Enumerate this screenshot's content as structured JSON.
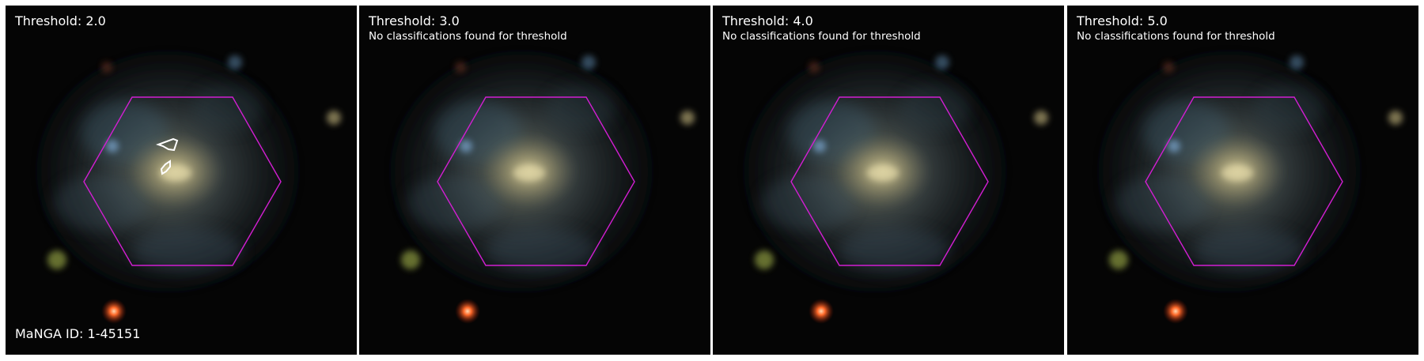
{
  "panels": [
    {
      "title": "Threshold: 2.0",
      "message": "",
      "has_contours": true
    },
    {
      "title": "Threshold: 3.0",
      "message": "No classifications found for threshold",
      "has_contours": false
    },
    {
      "title": "Threshold: 4.0",
      "message": "No classifications found for threshold",
      "has_contours": false
    },
    {
      "title": "Threshold: 5.0",
      "message": "No classifications found for threshold",
      "has_contours": false
    }
  ],
  "manga_id": "MaNGA ID: 1-45151",
  "colors": {
    "background": "#050505",
    "ifu_hexagon": "#d21ed2",
    "contour": "#ffffff",
    "label_text": "#ffffff"
  },
  "icons": [
    "galaxy-image",
    "ifu-hexagon-outline",
    "classification-contour"
  ]
}
